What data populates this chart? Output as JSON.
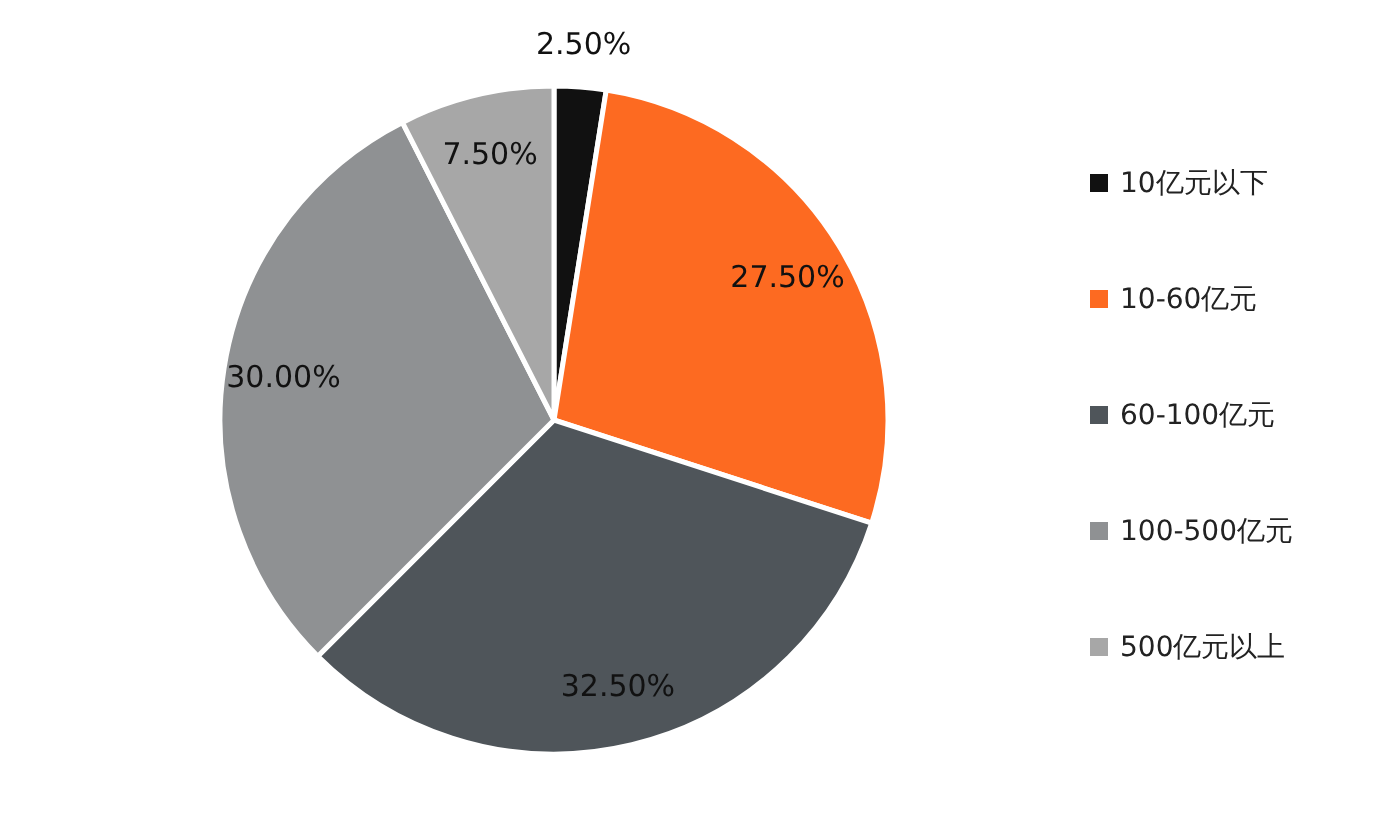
{
  "chart_data": {
    "type": "pie",
    "categories": [
      "10亿元以下",
      "10-60亿元",
      "60-100亿元",
      "100-500亿元",
      "500亿元以上"
    ],
    "values": [
      2.5,
      27.5,
      32.5,
      30,
      7.5
    ],
    "colors": [
      "#111111",
      "#fd6a21",
      "#4f555a",
      "#8f9193",
      "#a7a7a7"
    ],
    "value_labels": [
      "2.50%",
      "27.50%",
      "32.50%",
      "30.00%",
      "7.50%"
    ],
    "legend": "right"
  }
}
